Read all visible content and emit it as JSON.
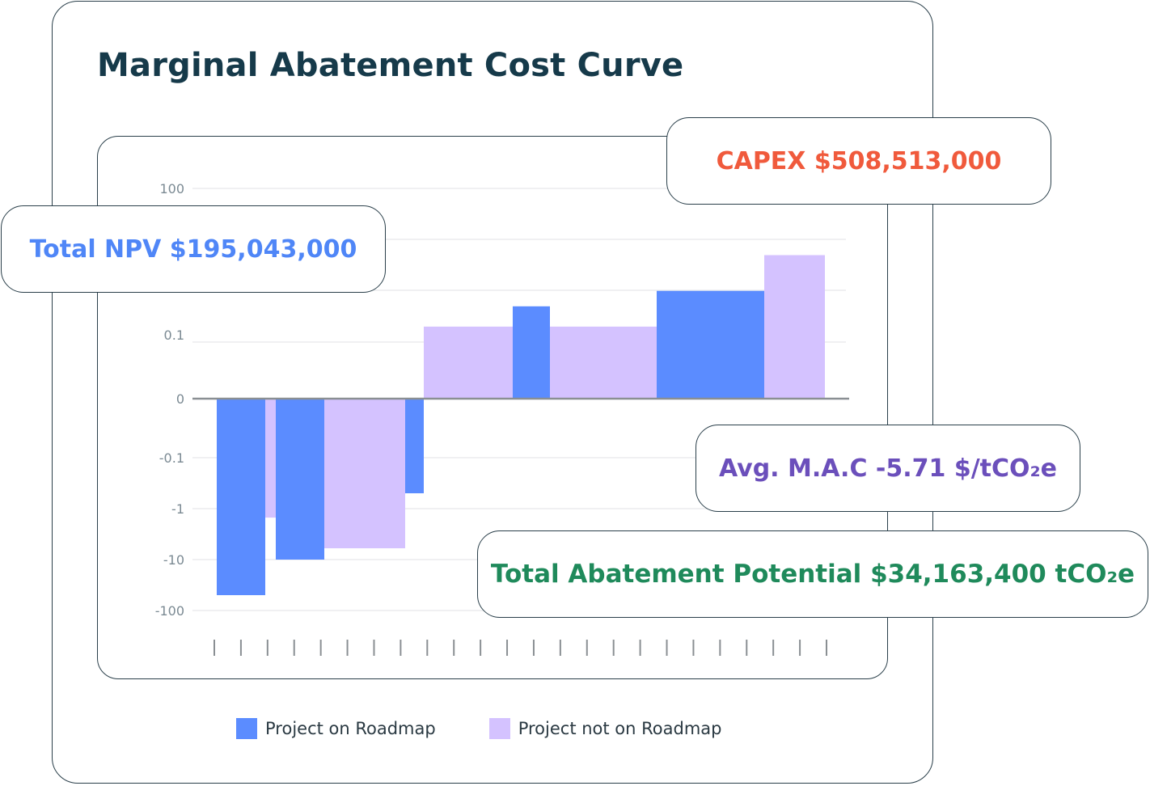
{
  "title": "Marginal Abatement Cost Curve",
  "callouts": {
    "capex": "CAPEX $508,513,000",
    "npv": "Total NPV $195,043,000",
    "mac": "Avg. M.A.C -5.71 $/tCO₂e",
    "tap": "Total Abatement Potential $34,163,400 tCO₂e"
  },
  "colors": {
    "on_roadmap": "#5b8cff",
    "not_on_roadmap": "#d4c2ff",
    "capex": "#f05a3c",
    "npv": "#4f86f7",
    "mac": "#6b4fbb",
    "tap": "#1f8a5b",
    "axis": "#8a8f93",
    "grid": "#e6e8ea",
    "tick_label": "#7b8a93"
  },
  "chart_data": {
    "type": "bar",
    "scale": "symlog",
    "y_ticks": [
      "100",
      "0.1",
      "0",
      "-0.1",
      "-1",
      "-10",
      "-100"
    ],
    "grid": true,
    "legend_position": "bottom",
    "series": [
      {
        "name": "Project on Roadmap",
        "color_key": "on_roadmap"
      },
      {
        "name": "Project not on Roadmap",
        "color_key": "not_on_roadmap"
      }
    ],
    "bars": [
      {
        "series": 0,
        "value": -50
      },
      {
        "series": 1,
        "value": -1.5
      },
      {
        "series": 0,
        "value": -10
      },
      {
        "series": 1,
        "value": -6
      },
      {
        "series": 0,
        "value": -0.5
      },
      {
        "series": 1,
        "value": 0.2
      },
      {
        "series": 0,
        "value": 0.5
      },
      {
        "series": 1,
        "value": 0.2
      },
      {
        "series": 0,
        "value": 1
      },
      {
        "series": 1,
        "value": 5
      }
    ],
    "x_tick_count": 24
  }
}
